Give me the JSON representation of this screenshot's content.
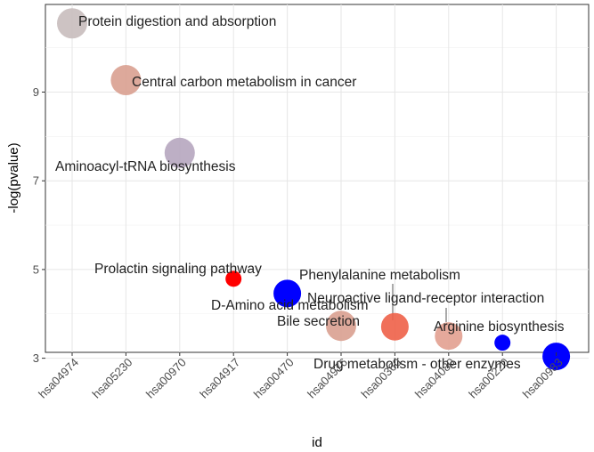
{
  "chart_data": {
    "type": "scatter",
    "title": "",
    "xlabel": "id",
    "ylabel": "-log(pvalue)",
    "categories": [
      "hsa04974",
      "hsa05230",
      "hsa00970",
      "hsa04917",
      "hsa00470",
      "hsa04976",
      "hsa00360",
      "hsa04080",
      "hsa00220",
      "hsa00983"
    ],
    "ylim": [
      2.6,
      10.8
    ],
    "yticks": [
      3,
      5,
      7,
      9
    ],
    "grid": true,
    "legend": "none",
    "points": [
      {
        "id": "hsa04974",
        "y": 10.55,
        "label": "Protein digestion and absorption",
        "color": "#c8bcbc",
        "size": "large"
      },
      {
        "id": "hsa05230",
        "y": 9.27,
        "label": "Central carbon metabolism in cancer",
        "color": "#d9a090",
        "size": "large"
      },
      {
        "id": "hsa00970",
        "y": 7.63,
        "label": "Aminoacyl-tRNA biosynthesis",
        "color": "#b6a6bf",
        "size": "large"
      },
      {
        "id": "hsa04917",
        "y": 4.79,
        "label": "Prolactin signaling pathway",
        "color": "#ff0000",
        "size": "small"
      },
      {
        "id": "hsa00470",
        "y": 4.46,
        "label": "D-Amino acid metabolism",
        "color": "#0000ff",
        "size": "medium"
      },
      {
        "id": "hsa04976",
        "y": 3.73,
        "label": "Bile secretion",
        "color": "#d9a090",
        "size": "large"
      },
      {
        "id": "hsa00360",
        "y": 3.71,
        "label": "Phenylalanine metabolism",
        "color": "#ee6048",
        "size": "medium"
      },
      {
        "id": "hsa04080",
        "y": 3.5,
        "label": "Neuroactive ligand-receptor interaction",
        "color": "#e2a090",
        "size": "medium"
      },
      {
        "id": "hsa00220",
        "y": 3.35,
        "label": "Arginine biosynthesis",
        "color": "#0000ff",
        "size": "small"
      },
      {
        "id": "hsa00983",
        "y": 3.04,
        "label": "Drug metabolism - other enzymes",
        "color": "#0000ff",
        "size": "medium"
      }
    ]
  }
}
